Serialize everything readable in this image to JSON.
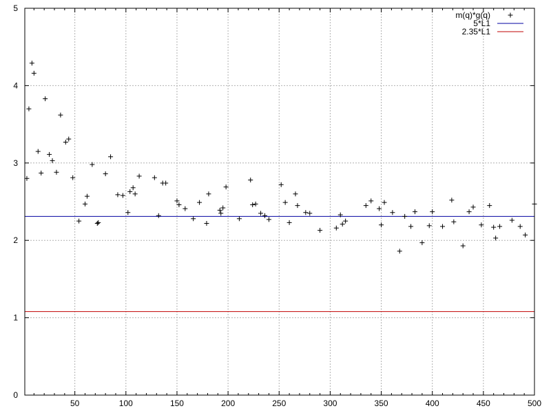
{
  "chart_data": {
    "type": "scatter",
    "title": "",
    "xlabel": "",
    "ylabel": "",
    "xlim": [
      1,
      500
    ],
    "ylim": [
      0,
      5
    ],
    "grid": true,
    "legend_position": "top-right",
    "x_ticks": [
      "50",
      "100",
      "150",
      "200",
      "250",
      "300",
      "350",
      "400",
      "450",
      "500"
    ],
    "y_ticks": [
      "0",
      "1",
      "2",
      "3",
      "4",
      "5"
    ],
    "series": [
      {
        "name": "m(q)*g(q)",
        "kind": "points",
        "marker": "+",
        "color": "#000000",
        "x": [
          3,
          5,
          8,
          10,
          14,
          17,
          21,
          25,
          28,
          32,
          36,
          41,
          44,
          48,
          54,
          60,
          62,
          67,
          72,
          73,
          80,
          85,
          92,
          97,
          102,
          104,
          107,
          109,
          113,
          128,
          132,
          136,
          139,
          150,
          152,
          158,
          166,
          172,
          179,
          181,
          192,
          193,
          195,
          198,
          211,
          222,
          224,
          227,
          232,
          236,
          240,
          252,
          256,
          260,
          266,
          268,
          276,
          280,
          290,
          306,
          310,
          312,
          315,
          335,
          340,
          348,
          350,
          353,
          361,
          368,
          373,
          379,
          383,
          390,
          397,
          400,
          410,
          419,
          421,
          430,
          436,
          440,
          448,
          456,
          460,
          462,
          466,
          478,
          486,
          491,
          500
        ],
        "y": [
          2.8,
          3.7,
          4.29,
          4.16,
          3.15,
          2.87,
          3.83,
          3.11,
          3.03,
          2.88,
          3.62,
          3.27,
          3.31,
          2.81,
          2.25,
          2.47,
          2.57,
          2.98,
          2.22,
          2.23,
          2.86,
          3.08,
          2.59,
          2.58,
          2.36,
          2.63,
          2.68,
          2.6,
          2.83,
          2.81,
          2.32,
          2.74,
          2.74,
          2.51,
          2.46,
          2.41,
          2.28,
          2.49,
          2.22,
          2.6,
          2.39,
          2.35,
          2.42,
          2.69,
          2.28,
          2.78,
          2.46,
          2.47,
          2.35,
          2.32,
          2.27,
          2.72,
          2.49,
          2.23,
          2.6,
          2.45,
          2.36,
          2.35,
          2.13,
          2.16,
          2.33,
          2.21,
          2.25,
          2.45,
          2.51,
          2.41,
          2.2,
          2.49,
          2.36,
          1.86,
          2.31,
          2.18,
          2.37,
          1.97,
          2.19,
          2.37,
          2.18,
          2.52,
          2.24,
          1.93,
          2.37,
          2.43,
          2.2,
          2.45,
          2.17,
          2.03,
          2.18,
          2.26,
          2.18,
          2.07,
          2.47
        ]
      },
      {
        "name": "5*L1",
        "kind": "hline",
        "color": "#0000a0",
        "y": 2.31
      },
      {
        "name": "2.35*L1",
        "kind": "hline",
        "color": "#c00000",
        "y": 1.08
      }
    ]
  }
}
